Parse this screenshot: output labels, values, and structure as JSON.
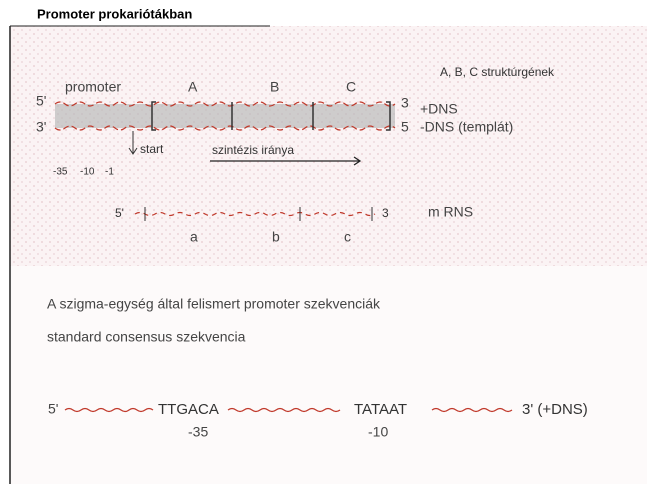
{
  "title": "Promoter prokariótákban",
  "diagram": {
    "promoter": "promoter",
    "genes": [
      "A",
      "B",
      "C"
    ],
    "genes_note": "A, B, C struktúrgének",
    "dna_ends_left": [
      "5'",
      "3'"
    ],
    "dna_ends_right": [
      "3",
      "5"
    ],
    "strands": [
      "+DNS",
      "-DNS (templát)"
    ],
    "start": "start",
    "direction": "szintézis iránya",
    "positions": [
      "-35",
      "-10",
      "-1"
    ],
    "mrna_ends": [
      "5'",
      "3"
    ],
    "mrna": "m RNS",
    "products": [
      "a",
      "b",
      "c"
    ]
  },
  "text": {
    "lines": [
      "A szigma-egység által felismert promoter szekvenciák",
      "standard consensus szekvencia"
    ]
  },
  "consensus": {
    "start": "5'",
    "box35": "TTGACA",
    "pos35": "-35",
    "box10": "TATAAT",
    "pos10": "-10",
    "end": "3' (+DNS)"
  }
}
